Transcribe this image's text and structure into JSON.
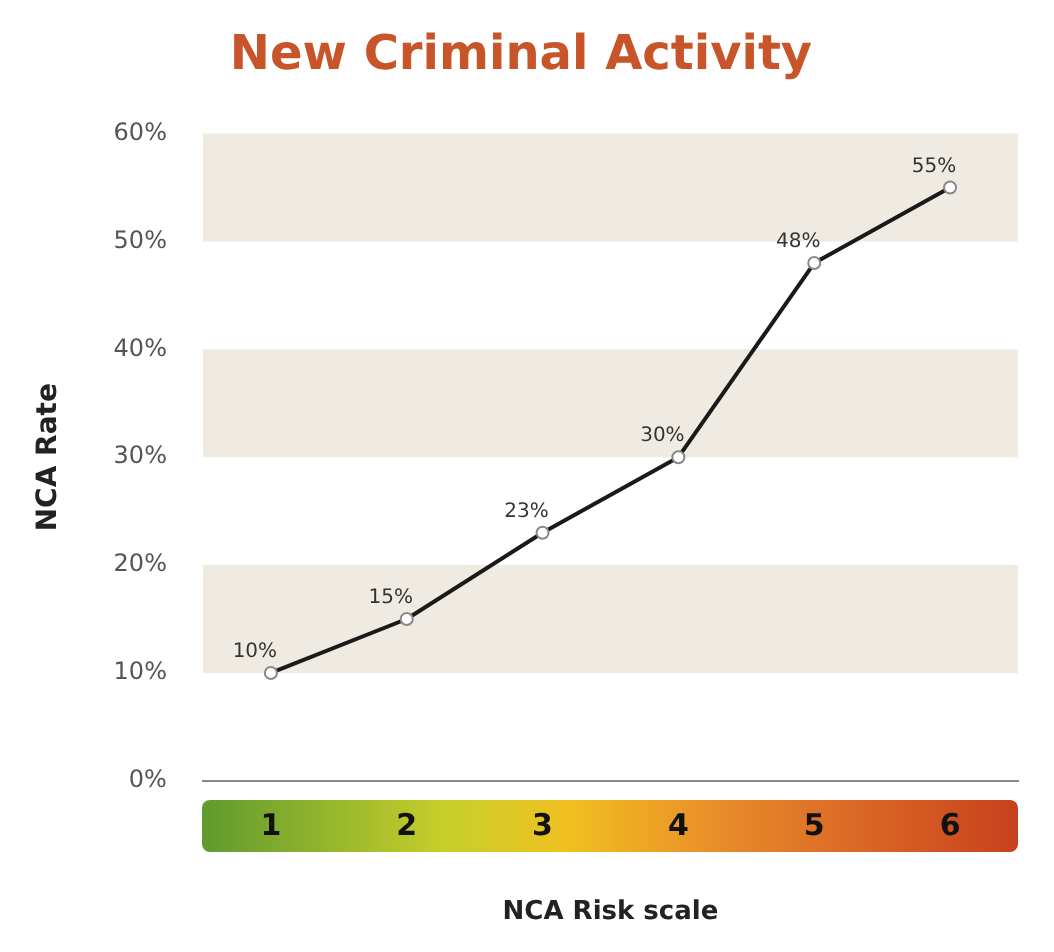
{
  "chart_data": {
    "type": "line",
    "title": "New Criminal Activity",
    "xlabel": "NCA Risk scale",
    "ylabel": "NCA Rate",
    "categories": [
      "1",
      "2",
      "3",
      "4",
      "5",
      "6"
    ],
    "series": [
      {
        "color": "#1a1a1a",
        "values": [
          10,
          15,
          23,
          30,
          48,
          55
        ],
        "value_labels": [
          "10%",
          "15%",
          "23%",
          "30%",
          "48%",
          "55%"
        ]
      }
    ],
    "ylim": [
      0,
      60
    ],
    "yticks": [
      {
        "value": 0,
        "label": "0%"
      },
      {
        "value": 10,
        "label": "10%"
      },
      {
        "value": 20,
        "label": "20%"
      },
      {
        "value": 30,
        "label": "30%"
      },
      {
        "value": 40,
        "label": "40%"
      },
      {
        "value": 50,
        "label": "50%"
      },
      {
        "value": 60,
        "label": "60%"
      }
    ],
    "bands": [
      {
        "axis": "y",
        "from": 10,
        "to": 20,
        "color": "#efebe2"
      },
      {
        "axis": "y",
        "from": 30,
        "to": 40,
        "color": "#efebe2"
      },
      {
        "axis": "y",
        "from": 50,
        "to": 60,
        "color": "#efebe2"
      }
    ],
    "grid": false,
    "legend": false,
    "marker": "circle",
    "line_style": "solid"
  }
}
